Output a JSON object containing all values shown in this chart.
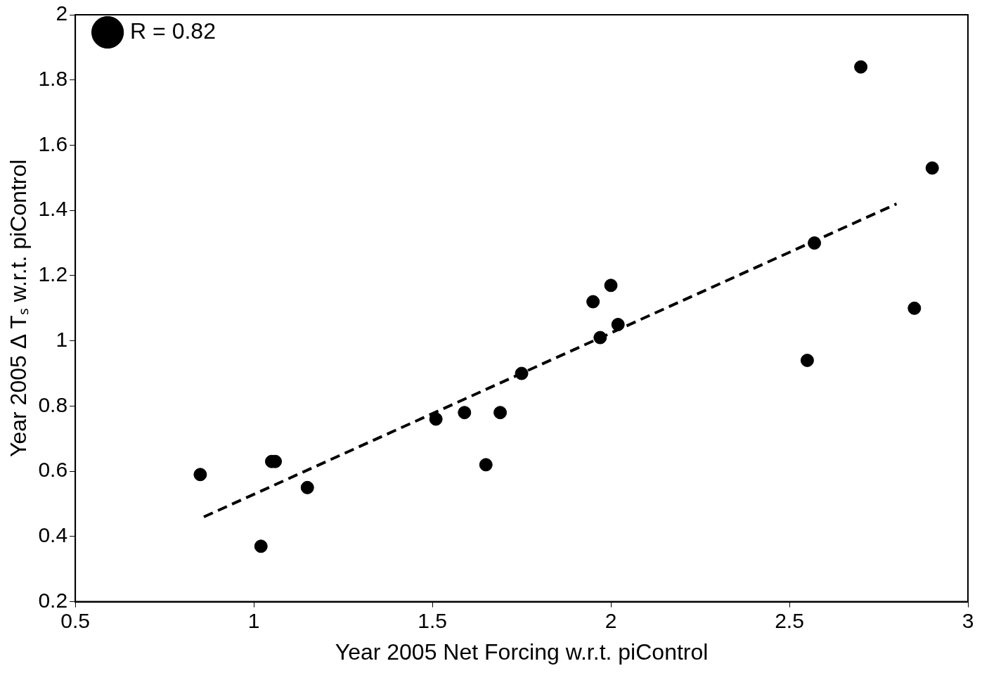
{
  "chart_data": {
    "type": "scatter",
    "xlabel": "Year 2005 Net Forcing w.r.t. piControl",
    "ylabel": "Year 2005 Δ Tₛ w.r.t. piControl",
    "xlim": [
      0.5,
      3
    ],
    "xticks": [
      0.5,
      1,
      1.5,
      2,
      2.5,
      3
    ],
    "ylim": [
      0.2,
      2
    ],
    "yticks": [
      0.2,
      0.4,
      0.6,
      0.8,
      1,
      1.2,
      1.4,
      1.6,
      1.8,
      2
    ],
    "grid": false,
    "legend": "top left",
    "marker": "circle",
    "series": [
      {
        "name": "R = 0.82",
        "color": "#000000",
        "x": [
          0.85,
          1.02,
          1.05,
          1.06,
          1.15,
          1.51,
          1.59,
          1.65,
          1.69,
          1.75,
          1.95,
          1.97,
          2.0,
          2.02,
          2.55,
          2.57,
          2.7,
          2.85,
          2.9
        ],
        "values": [
          0.59,
          0.37,
          0.63,
          0.63,
          0.55,
          0.76,
          0.78,
          0.62,
          0.78,
          0.9,
          1.12,
          1.01,
          1.17,
          1.05,
          0.94,
          1.3,
          1.84,
          1.1,
          1.53
        ]
      },
      {
        "type": "line",
        "color": "#000000",
        "line_style": "dashed",
        "marker": "none",
        "x": [
          0.86,
          2.8
        ],
        "values": [
          0.46,
          1.42
        ]
      }
    ]
  }
}
